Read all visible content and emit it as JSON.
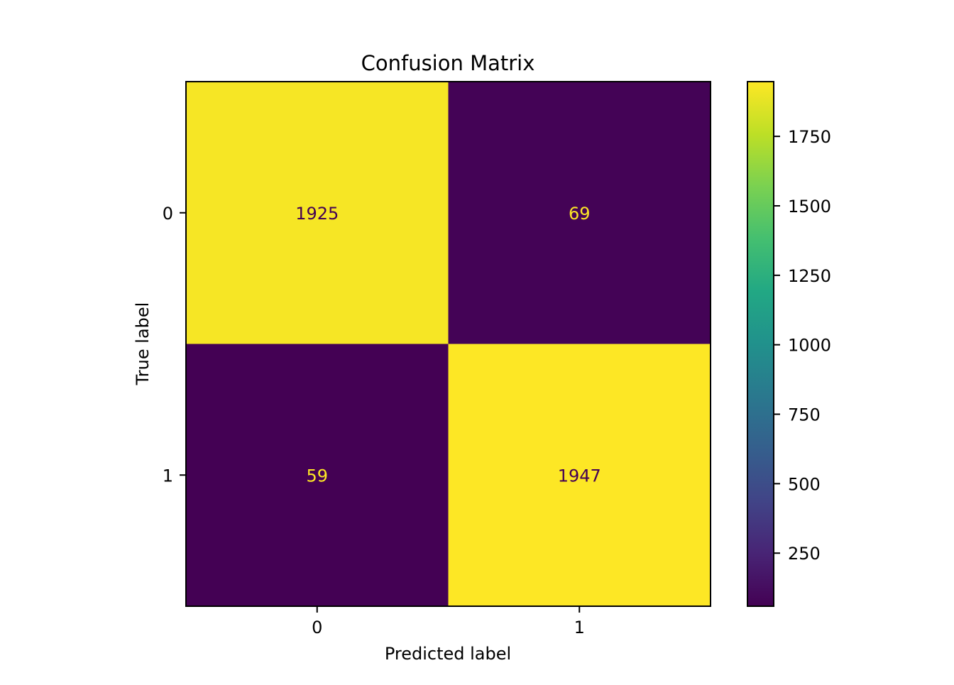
{
  "chart_data": {
    "type": "heatmap",
    "title": "Confusion Matrix",
    "xlabel": "Predicted label",
    "ylabel": "True label",
    "x_categories": [
      "0",
      "1"
    ],
    "y_categories": [
      "0",
      "1"
    ],
    "values": [
      [
        1925,
        69
      ],
      [
        59,
        1947
      ]
    ],
    "colormap": "viridis",
    "colorbar": {
      "min": 59,
      "max": 1947,
      "ticks": [
        250,
        500,
        750,
        1000,
        1250,
        1500,
        1750
      ],
      "tick_labels": [
        "250",
        "500",
        "750",
        "1000",
        "1250",
        "1500",
        "1750"
      ]
    },
    "cell_text_colors": {
      "on_dark": "#fde725",
      "on_light": "#440154"
    },
    "grid": false
  }
}
